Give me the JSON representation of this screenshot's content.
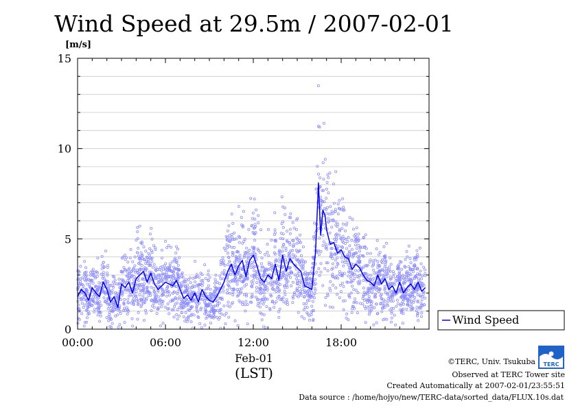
{
  "chart_data": {
    "type": "line",
    "title": "Wind Speed at 29.5m / 2007-02-01",
    "ylabel": "[m/s]",
    "ylim": [
      0,
      15
    ],
    "y_ticks": [
      "0",
      "5",
      "10",
      "15"
    ],
    "xlim": [
      0,
      24
    ],
    "x_ticks": [
      "00:00",
      "06:00",
      "12:00",
      "18:00"
    ],
    "x_date_label": "Feb-01",
    "x_unit_label": "(LST)",
    "grid": true,
    "legend_position": "right",
    "colors": {
      "line": "#0000ee",
      "scatter": "#8c8cff"
    },
    "series": [
      {
        "name": "Wind Speed",
        "x": [
          0.0,
          0.25,
          0.5,
          0.75,
          1.0,
          1.25,
          1.5,
          1.75,
          2.0,
          2.25,
          2.5,
          2.75,
          3.0,
          3.25,
          3.5,
          3.75,
          4.0,
          4.25,
          4.5,
          4.75,
          5.0,
          5.25,
          5.5,
          5.75,
          6.0,
          6.25,
          6.5,
          6.75,
          7.0,
          7.25,
          7.5,
          7.75,
          8.0,
          8.25,
          8.5,
          8.75,
          9.0,
          9.25,
          9.5,
          9.75,
          10.0,
          10.25,
          10.5,
          10.75,
          11.0,
          11.25,
          11.5,
          11.75,
          12.0,
          12.25,
          12.5,
          12.75,
          13.0,
          13.25,
          13.5,
          13.75,
          14.0,
          14.25,
          14.5,
          14.75,
          15.0,
          15.25,
          15.5,
          15.75,
          16.0,
          16.25,
          16.45,
          16.6,
          16.75,
          16.9,
          17.0,
          17.25,
          17.5,
          17.75,
          18.0,
          18.25,
          18.5,
          18.75,
          19.0,
          19.25,
          19.5,
          19.75,
          20.0,
          20.25,
          20.5,
          20.75,
          21.0,
          21.25,
          21.5,
          21.75,
          22.0,
          22.25,
          22.5,
          22.75,
          23.0,
          23.25,
          23.5,
          23.75
        ],
        "values": [
          1.8,
          2.2,
          2.0,
          1.6,
          2.3,
          2.0,
          1.8,
          2.6,
          2.2,
          1.5,
          1.8,
          1.2,
          2.5,
          2.3,
          2.6,
          2.0,
          2.8,
          3.0,
          3.2,
          2.6,
          3.1,
          2.5,
          2.2,
          2.4,
          2.6,
          2.5,
          2.4,
          2.7,
          2.2,
          1.7,
          1.9,
          1.6,
          2.0,
          1.5,
          2.2,
          1.8,
          1.6,
          1.5,
          1.8,
          2.2,
          2.6,
          3.2,
          3.6,
          3.0,
          3.5,
          3.8,
          2.9,
          3.8,
          4.1,
          3.5,
          2.8,
          2.6,
          3.0,
          2.8,
          3.6,
          2.7,
          4.1,
          3.2,
          3.9,
          3.6,
          3.4,
          3.2,
          2.4,
          2.3,
          2.2,
          4.3,
          8.1,
          5.2,
          6.6,
          6.3,
          5.5,
          4.7,
          4.8,
          4.2,
          4.4,
          4.0,
          3.9,
          3.3,
          3.6,
          3.4,
          3.0,
          2.7,
          2.6,
          2.4,
          3.0,
          2.5,
          2.8,
          2.2,
          2.4,
          2.0,
          2.6,
          2.0,
          2.3,
          2.5,
          2.2,
          2.6,
          2.1,
          2.3
        ]
      }
    ]
  },
  "footer": {
    "copyright": "©TERC, Univ. Tsukuba",
    "observed": "Observed at TERC Tower site",
    "created": "Created Automatically at 2007-02-01/23:55:51",
    "source": "Data source : /home/hojyo/new/TERC-data/sorted_data/FLUX.10s.dat",
    "logo_text": "TERC"
  }
}
